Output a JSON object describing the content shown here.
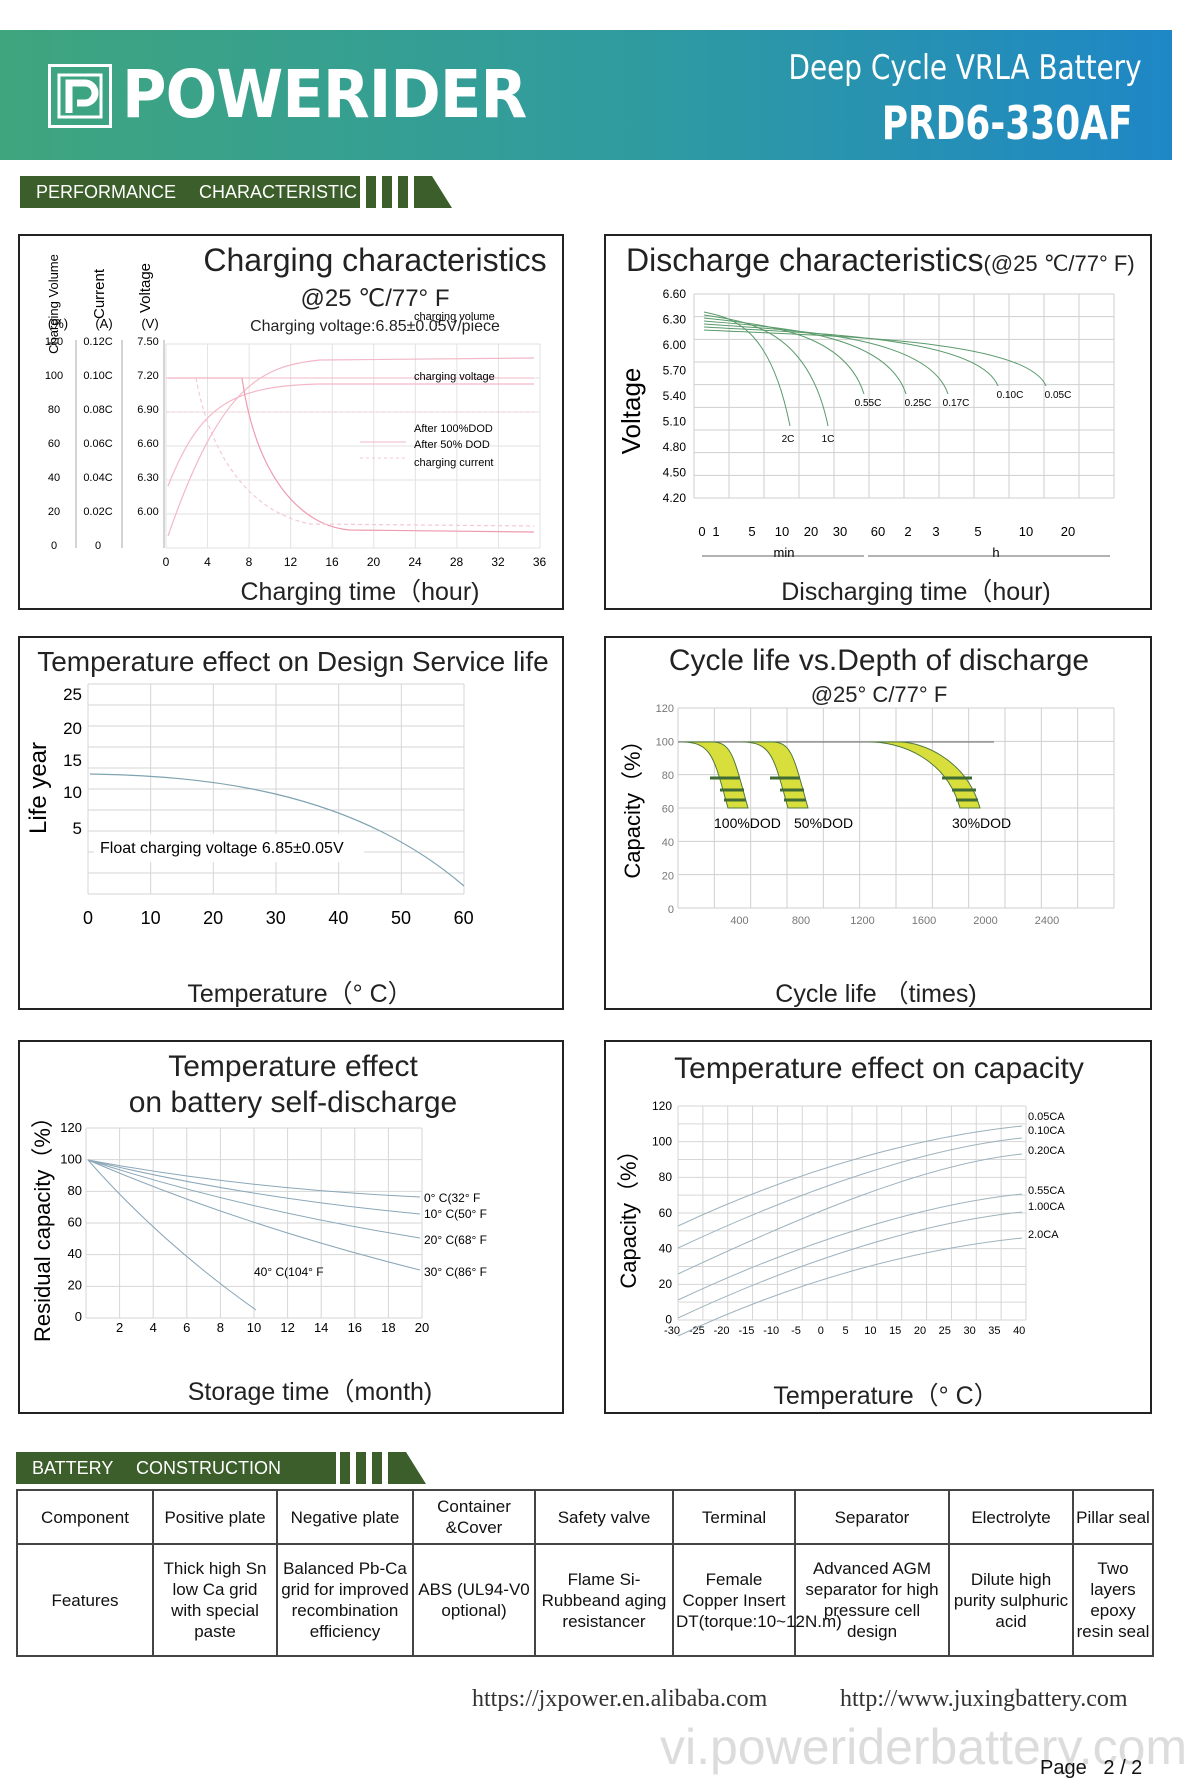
{
  "header": {
    "brand": "POWERIDER",
    "product_line": "Deep Cycle VRLA Battery",
    "model": "PRD6-330AF",
    "logo_letter": "P"
  },
  "sections": {
    "performance": "PERFORMANCE CHARACTERISTIC",
    "construction": "BATTERY CONSTRUCTION"
  },
  "charts": {
    "charging": {
      "title": "Charging characteristics",
      "subtitle": "@25 ℃/77° F",
      "note": "Charging voltage:6.85±0.05V/piece",
      "ylabel_volume": "Charging Volume",
      "ylabel_volume_unit": "(%)",
      "ylabel_current": "Current",
      "ylabel_current_unit": "(A)",
      "ylabel_voltage": "Voltage",
      "ylabel_voltage_unit": "(V)",
      "volume_ticks": [
        "120",
        "100",
        "80",
        "60",
        "40",
        "20",
        "0"
      ],
      "current_ticks": [
        "0.12C",
        "0.10C",
        "0.08C",
        "0.06C",
        "0.04C",
        "0.02C",
        "0"
      ],
      "voltage_ticks": [
        "7.50",
        "7.20",
        "6.90",
        "6.60",
        "6.30",
        "6.00"
      ],
      "x_ticks": [
        "0",
        "4",
        "8",
        "12",
        "16",
        "20",
        "24",
        "28",
        "32",
        "36"
      ],
      "xlabel": "Charging time（hour)",
      "labels": [
        "charging volume",
        "charging voltage",
        "After 100%DOD",
        "After 50% DOD",
        "charging current"
      ]
    },
    "discharge": {
      "title": "Discharge characteristics",
      "title_suffix": "(@25 ℃/77° F)",
      "ylabel": "Voltage",
      "y_ticks": [
        "6.60",
        "6.30",
        "6.00",
        "5.70",
        "5.40",
        "5.10",
        "4.80",
        "4.50",
        "4.20"
      ],
      "x_ticks": [
        "0",
        "1",
        "5",
        "10",
        "20",
        "30",
        "60",
        "2",
        "3",
        "5",
        "10",
        "20"
      ],
      "unit_min": "min",
      "unit_h": "h",
      "xlabel": "Discharging time（hour)",
      "curve_labels": [
        "2C",
        "1C",
        "0.55C",
        "0.25C",
        "0.17C",
        "0.10C",
        "0.05C"
      ]
    },
    "service_life": {
      "title": "Temperature effect on Design Service life",
      "ylabel": "Life year",
      "y_ticks": [
        "25",
        "20",
        "15",
        "10",
        "5"
      ],
      "x_ticks": [
        "0",
        "10",
        "20",
        "30",
        "40",
        "50",
        "60"
      ],
      "xlabel": "Temperature（° C）",
      "annotation": "Float charging voltage  6.85±0.05V"
    },
    "cycle_life": {
      "title": "Cycle life vs.Depth of discharge",
      "subtitle": "@25° C/77° F",
      "ylabel": "Capacity（%）",
      "y_ticks": [
        "120",
        "100",
        "80",
        "60",
        "40",
        "20",
        "0"
      ],
      "x_ticks": [
        "400",
        "800",
        "1200",
        "1600",
        "2000",
        "2400"
      ],
      "xlabel": "Cycle life （times)",
      "band_labels": [
        "100%DOD",
        "50%DOD",
        "30%DOD"
      ],
      "band_color": "#d8de3c"
    },
    "self_discharge": {
      "title_line1": "Temperature effect",
      "title_line2": "on battery self-discharge",
      "ylabel": "Residual capacity（%）",
      "y_ticks": [
        "120",
        "100",
        "80",
        "60",
        "40",
        "20",
        "0"
      ],
      "x_ticks": [
        "2",
        "4",
        "6",
        "8",
        "10",
        "12",
        "14",
        "16",
        "18",
        "20"
      ],
      "xlabel": "Storage time（month)",
      "curve_labels": [
        "0° C(32° F",
        "10° C(50° F",
        "20° C(68° F",
        "30° C(86° F",
        "40° C(104° F"
      ]
    },
    "temp_capacity": {
      "title": "Temperature effect on capacity",
      "ylabel": "Capacity（%）",
      "y_ticks": [
        "120",
        "100",
        "80",
        "60",
        "40",
        "20",
        "0"
      ],
      "x_ticks": [
        "-30",
        "-25",
        "-20",
        "-15",
        "-10",
        "-5",
        "0",
        "5",
        "10",
        "15",
        "20",
        "25",
        "30",
        "35",
        "40"
      ],
      "xlabel": "Temperature（° C）",
      "curve_labels": [
        "0.05CA",
        "0.10CA",
        "0.20CA",
        "0.55CA",
        "1.00CA",
        "2.0CA"
      ]
    }
  },
  "construction": {
    "headers": [
      "Component",
      "Positive plate",
      "Negative plate",
      "Container &Cover",
      "Safety valve",
      "Terminal",
      "Separator",
      "Electrolyte",
      "Pillar seal"
    ],
    "features_label": "Features",
    "features": [
      "Thick high Sn low Ca grid with special paste",
      "Balanced Pb-Ca grid for improved recombination efficiency",
      "ABS (UL94-V0 optional)",
      "Flame Si-Rubbeand aging resistancer",
      "Female Copper Insert DT(torque:10~12N.m)",
      "Advanced AGM separator for high pressure cell design",
      "Dilute high purity sulphuric acid",
      "Two layers epoxy resin seal"
    ]
  },
  "footer": {
    "url1": "https://jxpower.en.alibaba.com",
    "url2": "http://www.juxingbattery.com",
    "watermark": "vi.poweriderbattery.com",
    "page_label": "Page",
    "page_value": "2 / 2"
  },
  "colors": {
    "header_start": "#3fa57e",
    "header_end": "#1e87c6",
    "section_bar": "#3b5e2a"
  }
}
